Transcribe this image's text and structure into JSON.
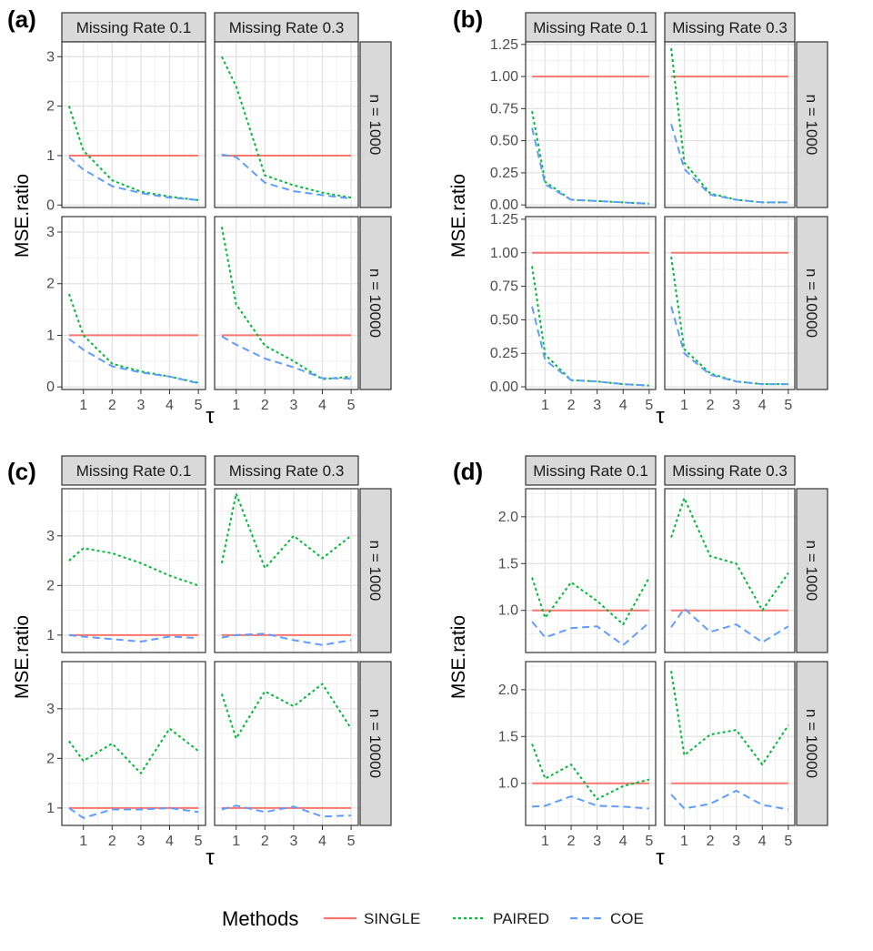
{
  "chart_data": {
    "type": "line",
    "legend": {
      "title": "Methods",
      "position": "bottom",
      "entries": [
        {
          "name": "SINGLE",
          "color": "#F8766D",
          "dash": "solid"
        },
        {
          "name": "PAIRED",
          "color": "#00BA38",
          "dash": "dotted"
        },
        {
          "name": "COE",
          "color": "#619CFF",
          "dash": "dashed"
        }
      ]
    },
    "grid": true,
    "x_tick_labels": [
      "1",
      "2",
      "3",
      "4",
      "5"
    ],
    "x": [
      0.5,
      1,
      2,
      3,
      4,
      5
    ],
    "xlim": [
      0.25,
      5.25
    ],
    "panels": [
      {
        "tag": "(a)",
        "xlabel": "τ",
        "ylabel": "MSE.ratio",
        "col_strips": [
          "Missing Rate 0.1",
          "Missing Rate 0.3"
        ],
        "row_strips": [
          "n = 1000",
          "n = 10000"
        ],
        "ylim": [
          -0.05,
          3.3
        ],
        "y_ticks": [
          0,
          1,
          2,
          3
        ],
        "y_tick_labels": [
          "0",
          "1",
          "2",
          "3"
        ],
        "facets": [
          {
            "row": 0,
            "col": 0,
            "series": [
              {
                "name": "SINGLE",
                "values": [
                  1,
                  1,
                  1,
                  1,
                  1,
                  1
                ]
              },
              {
                "name": "PAIRED",
                "values": [
                  2.0,
                  1.1,
                  0.5,
                  0.27,
                  0.17,
                  0.1
                ]
              },
              {
                "name": "COE",
                "values": [
                  0.97,
                  0.72,
                  0.38,
                  0.24,
                  0.15,
                  0.1
                ]
              }
            ]
          },
          {
            "row": 0,
            "col": 1,
            "series": [
              {
                "name": "SINGLE",
                "values": [
                  1,
                  1,
                  1,
                  1,
                  1,
                  1
                ]
              },
              {
                "name": "PAIRED",
                "values": [
                  3.0,
                  2.4,
                  0.6,
                  0.4,
                  0.25,
                  0.15
                ]
              },
              {
                "name": "COE",
                "values": [
                  1.02,
                  0.97,
                  0.45,
                  0.28,
                  0.2,
                  0.13
                ]
              }
            ]
          },
          {
            "row": 1,
            "col": 0,
            "series": [
              {
                "name": "SINGLE",
                "values": [
                  1,
                  1,
                  1,
                  1,
                  1,
                  1
                ]
              },
              {
                "name": "PAIRED",
                "values": [
                  1.8,
                  1.0,
                  0.45,
                  0.3,
                  0.2,
                  0.08
                ]
              },
              {
                "name": "COE",
                "values": [
                  0.93,
                  0.72,
                  0.4,
                  0.28,
                  0.2,
                  0.07
                ]
              }
            ]
          },
          {
            "row": 1,
            "col": 1,
            "series": [
              {
                "name": "SINGLE",
                "values": [
                  1,
                  1,
                  1,
                  1,
                  1,
                  1
                ]
              },
              {
                "name": "PAIRED",
                "values": [
                  3.1,
                  1.6,
                  0.8,
                  0.5,
                  0.15,
                  0.2
                ]
              },
              {
                "name": "COE",
                "values": [
                  0.98,
                  0.82,
                  0.55,
                  0.38,
                  0.17,
                  0.16
                ]
              }
            ]
          }
        ]
      },
      {
        "tag": "(b)",
        "xlabel": "τ",
        "ylabel": "MSE.ratio",
        "col_strips": [
          "Missing Rate 0.1",
          "Missing Rate 0.3"
        ],
        "row_strips": [
          "n = 1000",
          "n = 10000"
        ],
        "ylim": [
          -0.02,
          1.27
        ],
        "y_ticks": [
          0,
          0.25,
          0.5,
          0.75,
          1,
          1.25
        ],
        "y_tick_labels": [
          "0.00",
          "0.25",
          "0.50",
          "0.75",
          "1.00",
          "1.25"
        ],
        "facets": [
          {
            "row": 0,
            "col": 0,
            "series": [
              {
                "name": "SINGLE",
                "values": [
                  1,
                  1,
                  1,
                  1,
                  1,
                  1
                ]
              },
              {
                "name": "PAIRED",
                "values": [
                  0.73,
                  0.18,
                  0.04,
                  0.03,
                  0.02,
                  0.01
                ]
              },
              {
                "name": "COE",
                "values": [
                  0.6,
                  0.16,
                  0.04,
                  0.03,
                  0.02,
                  0.01
                ]
              }
            ]
          },
          {
            "row": 0,
            "col": 1,
            "series": [
              {
                "name": "SINGLE",
                "values": [
                  1,
                  1,
                  1,
                  1,
                  1,
                  1
                ]
              },
              {
                "name": "PAIRED",
                "values": [
                  1.22,
                  0.33,
                  0.09,
                  0.04,
                  0.02,
                  0.02
                ]
              },
              {
                "name": "COE",
                "values": [
                  0.63,
                  0.28,
                  0.08,
                  0.04,
                  0.02,
                  0.02
                ]
              }
            ]
          },
          {
            "row": 1,
            "col": 0,
            "series": [
              {
                "name": "SINGLE",
                "values": [
                  1,
                  1,
                  1,
                  1,
                  1,
                  1
                ]
              },
              {
                "name": "PAIRED",
                "values": [
                  0.9,
                  0.24,
                  0.05,
                  0.04,
                  0.02,
                  0.01
                ]
              },
              {
                "name": "COE",
                "values": [
                  0.6,
                  0.2,
                  0.05,
                  0.04,
                  0.02,
                  0.01
                ]
              }
            ]
          },
          {
            "row": 1,
            "col": 1,
            "series": [
              {
                "name": "SINGLE",
                "values": [
                  1,
                  1,
                  1,
                  1,
                  1,
                  1
                ]
              },
              {
                "name": "PAIRED",
                "values": [
                  0.97,
                  0.28,
                  0.1,
                  0.04,
                  0.02,
                  0.02
                ]
              },
              {
                "name": "COE",
                "values": [
                  0.6,
                  0.25,
                  0.09,
                  0.04,
                  0.02,
                  0.02
                ]
              }
            ]
          }
        ]
      },
      {
        "tag": "(c)",
        "xlabel": "τ",
        "ylabel": "MSE.ratio",
        "col_strips": [
          "Missing Rate 0.1",
          "Missing Rate 0.3"
        ],
        "row_strips": [
          "n = 1000",
          "n = 10000"
        ],
        "ylim": [
          0.65,
          3.95
        ],
        "y_ticks": [
          1,
          2,
          3
        ],
        "y_tick_labels": [
          "1",
          "2",
          "3"
        ],
        "facets": [
          {
            "row": 0,
            "col": 0,
            "series": [
              {
                "name": "SINGLE",
                "values": [
                  1,
                  1,
                  1,
                  1,
                  1,
                  1
                ]
              },
              {
                "name": "PAIRED",
                "values": [
                  2.5,
                  2.75,
                  2.65,
                  2.45,
                  2.2,
                  2.0
                ]
              },
              {
                "name": "COE",
                "values": [
                  1.0,
                  0.97,
                  0.92,
                  0.87,
                  0.97,
                  0.94
                ]
              }
            ]
          },
          {
            "row": 0,
            "col": 1,
            "series": [
              {
                "name": "SINGLE",
                "values": [
                  1,
                  1,
                  1,
                  1,
                  1,
                  1
                ]
              },
              {
                "name": "PAIRED",
                "values": [
                  2.45,
                  3.85,
                  2.35,
                  3.0,
                  2.55,
                  3.0
                ]
              },
              {
                "name": "COE",
                "values": [
                  0.95,
                  1.0,
                  1.03,
                  0.9,
                  0.8,
                  0.9
                ]
              }
            ]
          },
          {
            "row": 1,
            "col": 0,
            "series": [
              {
                "name": "SINGLE",
                "values": [
                  1,
                  1,
                  1,
                  1,
                  1,
                  1
                ]
              },
              {
                "name": "PAIRED",
                "values": [
                  2.35,
                  1.95,
                  2.3,
                  1.7,
                  2.6,
                  2.15
                ]
              },
              {
                "name": "COE",
                "values": [
                  1.0,
                  0.8,
                  0.97,
                  0.97,
                  1.0,
                  0.92
                ]
              }
            ]
          },
          {
            "row": 1,
            "col": 1,
            "series": [
              {
                "name": "SINGLE",
                "values": [
                  1,
                  1,
                  1,
                  1,
                  1,
                  1
                ]
              },
              {
                "name": "PAIRED",
                "values": [
                  3.3,
                  2.4,
                  3.35,
                  3.05,
                  3.5,
                  2.6
                ]
              },
              {
                "name": "COE",
                "values": [
                  0.97,
                  1.05,
                  0.92,
                  1.03,
                  0.83,
                  0.85
                ]
              }
            ]
          }
        ]
      },
      {
        "tag": "(d)",
        "xlabel": "τ",
        "ylabel": "MSE.ratio",
        "col_strips": [
          "Missing Rate 0.1",
          "Missing Rate 0.3"
        ],
        "row_strips": [
          "n = 1000",
          "n = 10000"
        ],
        "ylim": [
          0.55,
          2.3
        ],
        "y_ticks": [
          1.0,
          1.5,
          2.0
        ],
        "y_tick_labels": [
          "1.0",
          "1.5",
          "2.0"
        ],
        "facets": [
          {
            "row": 0,
            "col": 0,
            "series": [
              {
                "name": "SINGLE",
                "values": [
                  1,
                  1,
                  1,
                  1,
                  1,
                  1
                ]
              },
              {
                "name": "PAIRED",
                "values": [
                  1.35,
                  0.92,
                  1.3,
                  1.1,
                  0.85,
                  1.35
                ]
              },
              {
                "name": "COE",
                "values": [
                  0.88,
                  0.71,
                  0.81,
                  0.83,
                  0.63,
                  0.87
                ]
              }
            ]
          },
          {
            "row": 0,
            "col": 1,
            "series": [
              {
                "name": "SINGLE",
                "values": [
                  1,
                  1,
                  1,
                  1,
                  1,
                  1
                ]
              },
              {
                "name": "PAIRED",
                "values": [
                  1.78,
                  2.2,
                  1.58,
                  1.5,
                  1.0,
                  1.4
                ]
              },
              {
                "name": "COE",
                "values": [
                  0.82,
                  1.02,
                  0.77,
                  0.85,
                  0.66,
                  0.83
                ]
              }
            ]
          },
          {
            "row": 1,
            "col": 0,
            "series": [
              {
                "name": "SINGLE",
                "values": [
                  1,
                  1,
                  1,
                  1,
                  1,
                  1
                ]
              },
              {
                "name": "PAIRED",
                "values": [
                  1.42,
                  1.05,
                  1.2,
                  0.83,
                  0.97,
                  1.04
                ]
              },
              {
                "name": "COE",
                "values": [
                  0.75,
                  0.76,
                  0.86,
                  0.76,
                  0.75,
                  0.73
                ]
              }
            ]
          },
          {
            "row": 1,
            "col": 1,
            "series": [
              {
                "name": "SINGLE",
                "values": [
                  1,
                  1,
                  1,
                  1,
                  1,
                  1
                ]
              },
              {
                "name": "PAIRED",
                "values": [
                  2.2,
                  1.3,
                  1.52,
                  1.57,
                  1.2,
                  1.62
                ]
              },
              {
                "name": "COE",
                "values": [
                  0.88,
                  0.73,
                  0.78,
                  0.92,
                  0.77,
                  0.72
                ]
              }
            ]
          }
        ]
      }
    ]
  }
}
